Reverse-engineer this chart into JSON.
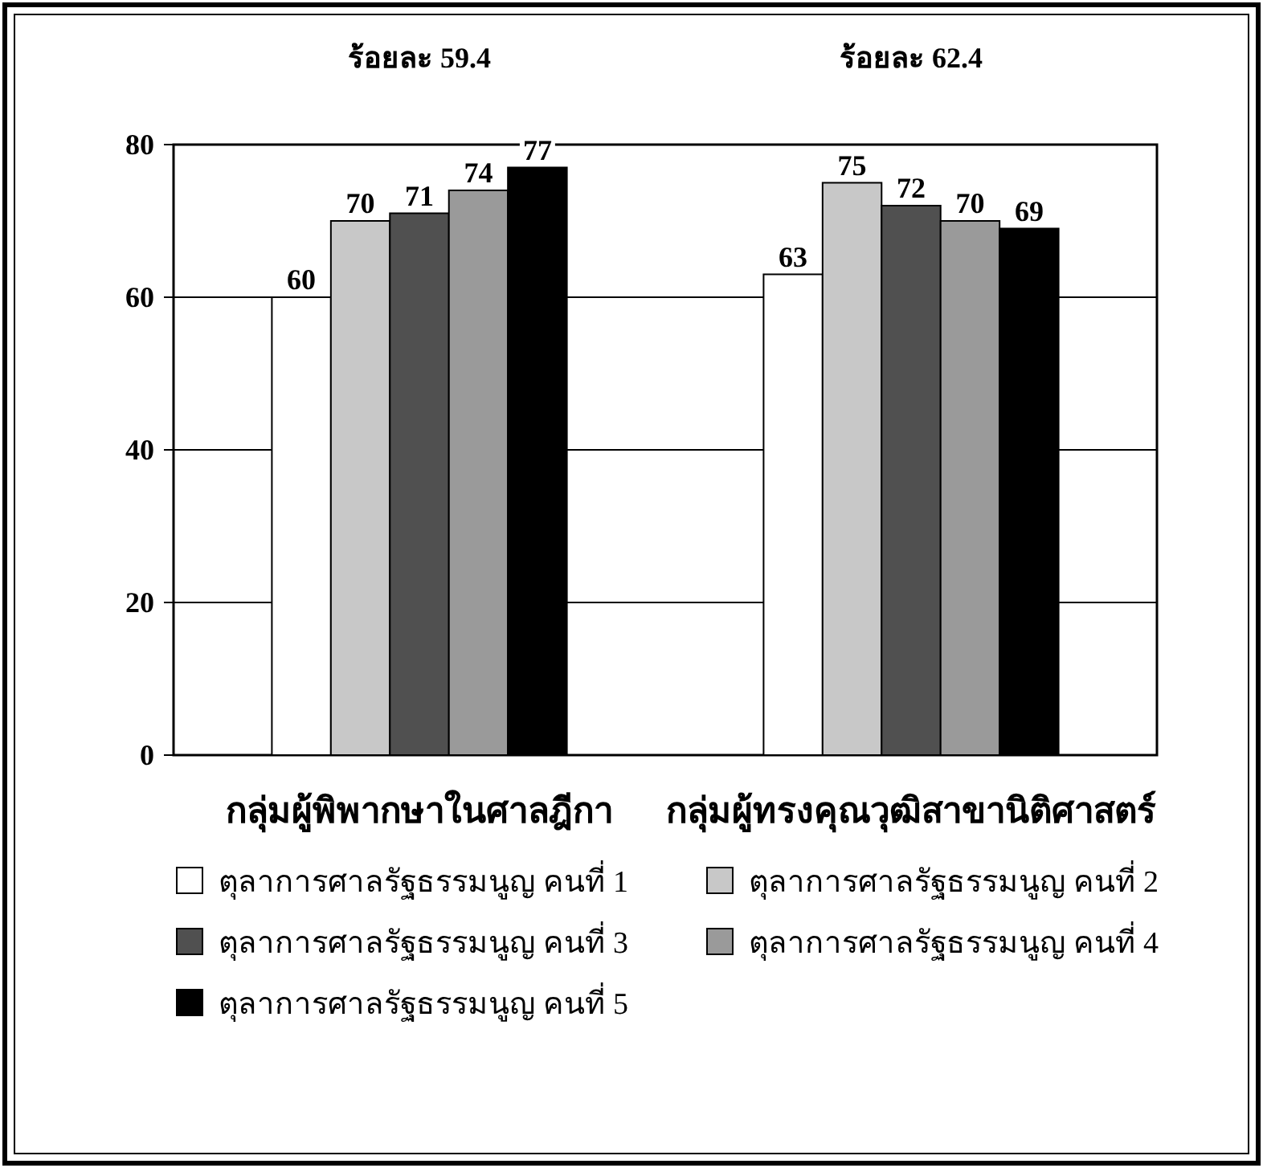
{
  "chart_data": {
    "type": "bar",
    "categories": [
      "กลุ่มผู้พิพากษาในศาลฎีกา",
      "กลุ่มผู้ทรงคุณวุฒิสาขานิติศาสตร์"
    ],
    "series": [
      {
        "name": "ตุลาการศาลรัฐธรรมนูญ คนที่ 1",
        "color": "#ffffff",
        "values": [
          60,
          63
        ]
      },
      {
        "name": "ตุลาการศาลรัฐธรรมนูญ คนที่ 2",
        "color": "#c8c8c8",
        "values": [
          70,
          75
        ]
      },
      {
        "name": "ตุลาการศาลรัฐธรรมนูญ คนที่ 3",
        "color": "#505050",
        "values": [
          71,
          72
        ]
      },
      {
        "name": "ตุลาการศาลรัฐธรรมนูญ คนที่ 4",
        "color": "#9a9a9a",
        "values": [
          74,
          70
        ]
      },
      {
        "name": "ตุลาการศาลรัฐธรรมนูญ คนที่ 5",
        "color": "#000000",
        "values": [
          77,
          69
        ]
      }
    ],
    "annotations": [
      "ร้อยละ 59.4",
      "ร้อยละ 62.4"
    ],
    "ylim": [
      0,
      80
    ],
    "yticks": [
      0,
      20,
      40,
      60,
      80
    ],
    "grid": "y",
    "legend": "bottom",
    "data_labels": true
  }
}
